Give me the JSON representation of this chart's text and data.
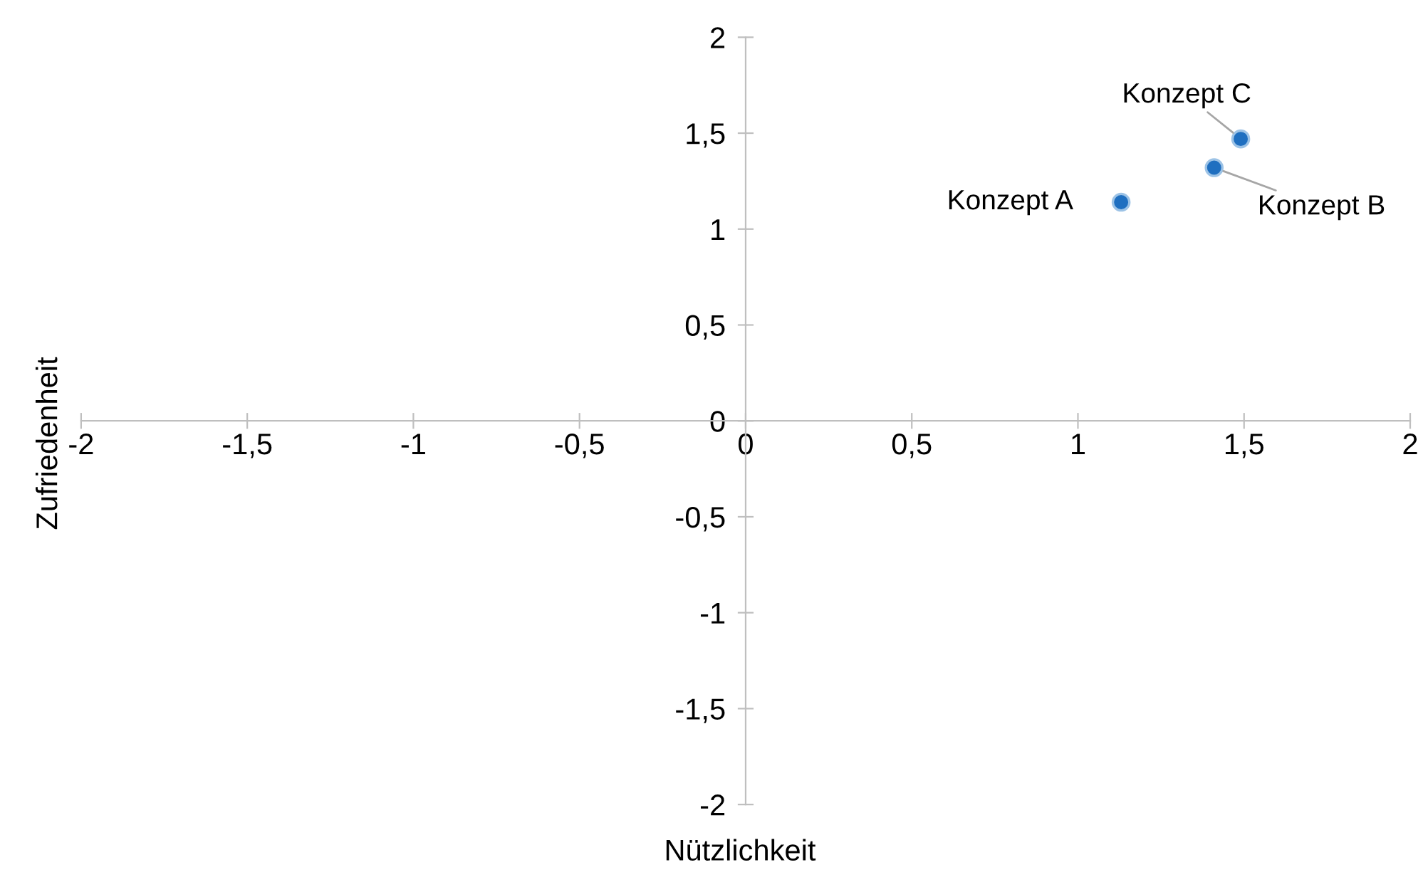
{
  "chart_data": {
    "type": "scatter",
    "xlabel": "Nützlichkeit",
    "ylabel": "Zufriedenheit",
    "x": [
      1.13,
      1.41,
      1.49
    ],
    "values": [
      1.14,
      1.32,
      1.47
    ],
    "color": "#1f6fc0",
    "marker": "circle",
    "grid": false,
    "legend": false,
    "xlim": [
      -2,
      2
    ],
    "ylim": [
      -2,
      2
    ],
    "xticks": [
      -2,
      {
        "value": -1.5,
        "label": "-1,5"
      },
      -1,
      {
        "value": -0.5,
        "label": "-0,5"
      },
      0,
      {
        "value": 0.5,
        "label": "0,5"
      },
      1,
      {
        "value": 1.5,
        "label": "1,5"
      },
      2
    ],
    "yticks": [
      -2,
      {
        "value": -1.5,
        "label": "-1,5"
      },
      -1,
      {
        "value": -0.5,
        "label": "-0,5"
      },
      0,
      {
        "value": 0.5,
        "label": "0,5"
      },
      1,
      {
        "value": 1.5,
        "label": "1,5"
      },
      2
    ],
    "annotations": [
      {
        "text": "Konzept A",
        "x": 1.13,
        "y": 1.14
      },
      {
        "text": "Konzept B",
        "x": 1.41,
        "y": 1.32
      },
      {
        "text": "Konzept C",
        "x": 1.49,
        "y": 1.47
      }
    ]
  }
}
